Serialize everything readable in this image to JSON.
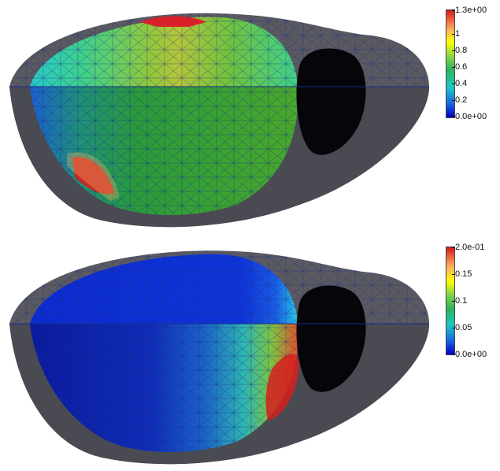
{
  "panels": [
    {
      "colorbar": {
        "ticks": [
          "1.3e+00",
          "1",
          "0.8",
          "0.6",
          "0.4",
          "0.2",
          "0.0e+00"
        ],
        "gradient": [
          "#d7191c",
          "#fdae61",
          "#ffff00",
          "#7ad151",
          "#2fb35a",
          "#1ec8c8",
          "#1a6fe0",
          "#0000c8"
        ]
      },
      "field_colors": {
        "top_cap": [
          "#27c9c9",
          "#3fd18a",
          "#6fc33e",
          "#93c83a",
          "#b5c53a",
          "#d8b032"
        ],
        "lower_body": [
          "#1a5fcf",
          "#1f8f7a",
          "#2a9b3a",
          "#3aa52c",
          "#49a82a"
        ],
        "hotspot": "#d6201e"
      }
    },
    {
      "colorbar": {
        "ticks": [
          "2.0e-01",
          "0.15",
          "0.1",
          "0.05",
          "0.0e+00"
        ],
        "gradient": [
          "#d7191c",
          "#fdae61",
          "#ffff00",
          "#7ad151",
          "#2fb35a",
          "#1ec8c8",
          "#1a6fe0",
          "#0000c8"
        ]
      },
      "field_colors": {
        "top_cap": [
          "#0b2bd0",
          "#0e35d8",
          "#1a5ee3",
          "#26c7e8"
        ],
        "lower_body": [
          "#0a1a9e",
          "#0f2cb8",
          "#1b63c7",
          "#2eb6b0",
          "#7cc640",
          "#e3502a"
        ],
        "hotspot": "#d6201e"
      }
    }
  ],
  "mesh_color": "#1a2a8a",
  "shell_color": "#5a5a60",
  "hole_color": "#05050a"
}
